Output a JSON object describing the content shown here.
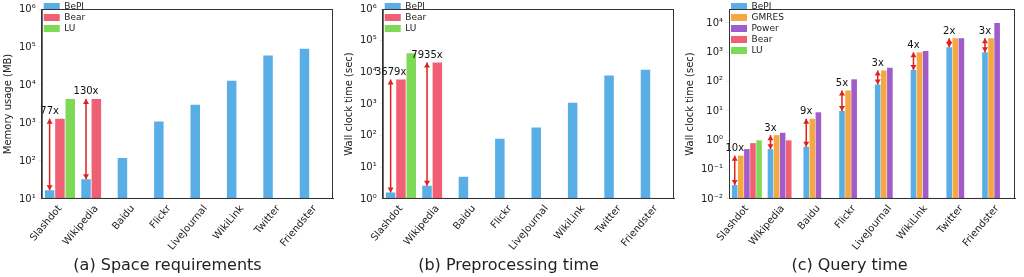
{
  "chart_data": [
    {
      "type": "bar",
      "title": "(a) Space requirements",
      "y_label": "Memory usage (MB)",
      "categories": [
        "Slashdot",
        "Wikipedia",
        "Baidu",
        "Flickr",
        "LiveJournal",
        "WikiLink",
        "Twitter",
        "Friendster"
      ],
      "series": [
        {
          "name": "BePI",
          "color": "#5aaee6",
          "values": [
            17,
            33,
            120,
            1100,
            3000,
            13000,
            60000,
            90000
          ]
        },
        {
          "name": "Bear",
          "color": "#f06075",
          "values": [
            1300,
            4300,
            null,
            null,
            null,
            null,
            null,
            null
          ]
        },
        {
          "name": "LU",
          "color": "#7ed957",
          "values": [
            4300,
            null,
            null,
            null,
            null,
            null,
            null,
            null
          ]
        }
      ],
      "ylim": [
        10,
        1000000
      ],
      "yticks": [
        {
          "value": 10,
          "label": "10¹"
        },
        {
          "value": 100,
          "label": "10²"
        },
        {
          "value": 1000,
          "label": "10³"
        },
        {
          "value": 10000,
          "label": "10⁴"
        },
        {
          "value": 100000,
          "label": "10⁵"
        },
        {
          "value": 1000000,
          "label": "10⁶"
        }
      ],
      "log": "y",
      "grid": false,
      "legend": "top-left",
      "annotations": [
        {
          "text": "77x",
          "category": "Slashdot",
          "from": "BePI",
          "to": "Bear"
        },
        {
          "text": "130x",
          "category": "Wikipedia",
          "from": "BePI",
          "to": "Bear"
        }
      ]
    },
    {
      "type": "bar",
      "title": "(b) Preprocessing time",
      "y_label": "Wall clock time (sec)",
      "categories": [
        "Slashdot",
        "Wikipedia",
        "Baidu",
        "Flickr",
        "LiveJournal",
        "WikiLink",
        "Twitter",
        "Friendster"
      ],
      "series": [
        {
          "name": "BePI",
          "color": "#5aaee6",
          "values": [
            1.6,
            2.6,
            5,
            80,
            180,
            1100,
            8000,
            12000
          ]
        },
        {
          "name": "Bear",
          "color": "#f06075",
          "values": [
            5900,
            20600,
            null,
            null,
            null,
            null,
            null,
            null
          ]
        },
        {
          "name": "LU",
          "color": "#7ed957",
          "values": [
            40000,
            null,
            null,
            null,
            null,
            null,
            null,
            null
          ]
        }
      ],
      "ylim": [
        1,
        1000000
      ],
      "yticks": [
        {
          "value": 1,
          "label": "10⁰"
        },
        {
          "value": 10,
          "label": "10¹"
        },
        {
          "value": 100,
          "label": "10²"
        },
        {
          "value": 1000,
          "label": "10³"
        },
        {
          "value": 10000,
          "label": "10⁴"
        },
        {
          "value": 100000,
          "label": "10⁵"
        },
        {
          "value": 1000000,
          "label": "10⁶"
        }
      ],
      "log": "y",
      "grid": false,
      "legend": "top-left",
      "annotations": [
        {
          "text": "3679x",
          "category": "Slashdot",
          "from": "BePI",
          "to": "Bear"
        },
        {
          "text": "7935x",
          "category": "Wikipedia",
          "from": "BePI",
          "to": "Bear"
        }
      ]
    },
    {
      "type": "bar",
      "title": "(c) Query time",
      "y_label": "Wall clock time (sec)",
      "categories": [
        "Slashdot",
        "Wikipedia",
        "Baidu",
        "Flickr",
        "LiveJournal",
        "WikiLink",
        "Twitter",
        "Friendster"
      ],
      "series": [
        {
          "name": "BePI",
          "color": "#5aaee6",
          "values": [
            0.03,
            0.5,
            0.6,
            10,
            80,
            250,
            1500,
            1000
          ]
        },
        {
          "name": "GMRES",
          "color": "#f5a742",
          "values": [
            0.3,
            1.5,
            5.4,
            50,
            240,
            1000,
            3000,
            3000
          ]
        },
        {
          "name": "Power",
          "color": "#a05cc8",
          "values": [
            0.5,
            1.8,
            9,
            120,
            300,
            1100,
            3000,
            10000
          ]
        },
        {
          "name": "Bear",
          "color": "#f06075",
          "values": [
            0.8,
            1.0,
            null,
            null,
            null,
            null,
            null,
            null
          ]
        },
        {
          "name": "LU",
          "color": "#7ed957",
          "values": [
            1.0,
            null,
            null,
            null,
            null,
            null,
            null,
            null
          ]
        }
      ],
      "ylim": [
        0.01,
        30000
      ],
      "yticks": [
        {
          "value": 0.01,
          "label": "10⁻²"
        },
        {
          "value": 0.1,
          "label": "10⁻¹"
        },
        {
          "value": 1,
          "label": "10⁰"
        },
        {
          "value": 10,
          "label": "10¹"
        },
        {
          "value": 100,
          "label": "10²"
        },
        {
          "value": 1000,
          "label": "10³"
        },
        {
          "value": 10000,
          "label": "10⁴"
        }
      ],
      "log": "y",
      "grid": false,
      "legend": "top-left",
      "annotations": [
        {
          "text": "10x",
          "category": "Slashdot",
          "from": "BePI",
          "to": "GMRES"
        },
        {
          "text": "3x",
          "category": "Wikipedia",
          "from": "BePI",
          "to": "GMRES"
        },
        {
          "text": "9x",
          "category": "Baidu",
          "from": "BePI",
          "to": "GMRES"
        },
        {
          "text": "5x",
          "category": "Flickr",
          "from": "BePI",
          "to": "GMRES"
        },
        {
          "text": "3x",
          "category": "LiveJournal",
          "from": "BePI",
          "to": "GMRES"
        },
        {
          "text": "4x",
          "category": "WikiLink",
          "from": "BePI",
          "to": "GMRES"
        },
        {
          "text": "2x",
          "category": "Twitter",
          "from": "BePI",
          "to": "GMRES"
        },
        {
          "text": "3x",
          "category": "Friendster",
          "from": "BePI",
          "to": "GMRES"
        }
      ]
    }
  ]
}
